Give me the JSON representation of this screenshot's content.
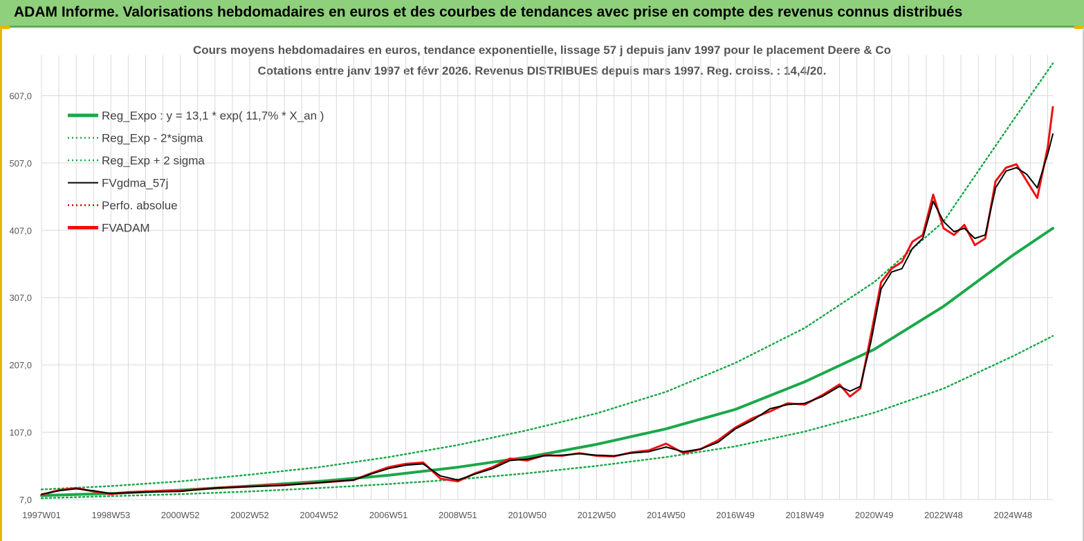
{
  "header": {
    "title": "ADAM Informe. Valorisations hebdomadaires en euros et des courbes de tendances avec prise en compte des revenus connus distribués"
  },
  "colors": {
    "banner": "#8fd07c",
    "trend": "#1aa84a",
    "band": "#1aa84a",
    "smooth": "#000000",
    "perf": "#cc0000",
    "price": "#ee1111",
    "grid": "#d9d9d9"
  },
  "chart_data": {
    "type": "line",
    "title": "Cours moyens hebdomadaires en euros, tendance exponentielle, lissage 57 j depuis janv 1997 pour le placement Deere & Co",
    "subtitle": "Cotations entre janv 1997 et févr 2026. Revenus DISTRIBUES depuis mars 1997. Reg. croiss. : 14,4/20.",
    "xlabel": "",
    "ylabel": "",
    "xlim": [
      1997.0,
      2026.15
    ],
    "ylim": [
      7.0,
      667.0
    ],
    "y_ticks": [
      "7,0",
      "107,0",
      "207,0",
      "307,0",
      "407,0",
      "507,0",
      "607,0"
    ],
    "x_ticks": [
      "1997W01",
      "1998W53",
      "2000W52",
      "2002W52",
      "2004W52",
      "2006W51",
      "2008W51",
      "2010W50",
      "2012W50",
      "2014W50",
      "2016W49",
      "2018W49",
      "2020W49",
      "2022W48",
      "2024W48"
    ],
    "x_tick_years": [
      1997.0,
      1999.0,
      2001.0,
      2003.0,
      2005.0,
      2007.0,
      2009.0,
      2011.0,
      2013.0,
      2015.0,
      2017.0,
      2019.0,
      2021.0,
      2023.0,
      2025.0
    ],
    "grid": true,
    "legend_position": "top-left",
    "series": [
      {
        "name": "Reg_Expo : y = 13,1 * exp( 11,7% *  X_an )",
        "style": "thick-solid",
        "color": "#1aa84a",
        "x": [
          1997.0,
          1999.0,
          2001.0,
          2003.0,
          2005.0,
          2007.0,
          2009.0,
          2011.0,
          2013.0,
          2015.0,
          2017.0,
          2019.0,
          2021.0,
          2023.0,
          2025.0,
          2026.15
        ],
        "y": [
          13,
          16,
          21,
          27,
          34,
          43,
          55,
          70,
          89,
          112,
          141,
          182,
          230,
          294,
          370,
          410
        ]
      },
      {
        "name": "Reg_Exp - 2*sigma",
        "style": "dotted",
        "color": "#1aa84a",
        "x": [
          1997.0,
          1999.0,
          2001.0,
          2003.0,
          2005.0,
          2007.0,
          2009.0,
          2011.0,
          2013.0,
          2015.0,
          2017.0,
          2019.0,
          2021.0,
          2023.0,
          2025.0,
          2026.15
        ],
        "y": [
          9,
          12,
          15,
          19,
          24,
          30,
          37,
          46,
          57,
          70,
          86,
          108,
          136,
          172,
          220,
          250
        ]
      },
      {
        "name": "Reg_Exp + 2 sigma",
        "style": "dotted",
        "color": "#1aa84a",
        "x": [
          1997.0,
          1999.0,
          2001.0,
          2003.0,
          2005.0,
          2007.0,
          2009.0,
          2011.0,
          2013.0,
          2015.0,
          2017.0,
          2019.0,
          2021.0,
          2023.0,
          2025.0,
          2026.15
        ],
        "y": [
          22,
          27,
          34,
          44,
          55,
          70,
          88,
          110,
          135,
          167,
          210,
          262,
          330,
          420,
          570,
          655
        ]
      },
      {
        "name": "FVgdma_57j",
        "style": "thin-solid",
        "color": "#000000",
        "x": [
          1997.0,
          1997.5,
          1998.0,
          1998.5,
          1999.0,
          1999.5,
          2000.0,
          2001.0,
          2002.0,
          2003.0,
          2004.0,
          2005.0,
          2006.0,
          2006.5,
          2007.0,
          2007.5,
          2008.0,
          2008.5,
          2009.0,
          2009.5,
          2010.0,
          2010.5,
          2011.0,
          2011.5,
          2012.0,
          2012.5,
          2013.0,
          2013.5,
          2014.0,
          2014.5,
          2015.0,
          2015.5,
          2016.0,
          2016.5,
          2017.0,
          2017.5,
          2018.0,
          2018.5,
          2019.0,
          2019.5,
          2020.0,
          2020.3,
          2020.6,
          2020.9,
          2021.2,
          2021.5,
          2021.8,
          2022.1,
          2022.4,
          2022.7,
          2023.0,
          2023.3,
          2023.6,
          2023.9,
          2024.2,
          2024.5,
          2024.8,
          2025.1,
          2025.4,
          2025.7,
          2026.0,
          2026.15
        ],
        "y": [
          15,
          20,
          23,
          20,
          16,
          17,
          18,
          19,
          24,
          26,
          28,
          32,
          36,
          45,
          53,
          58,
          60,
          42,
          36,
          45,
          53,
          65,
          67,
          72,
          73,
          75,
          73,
          72,
          76,
          78,
          85,
          78,
          82,
          92,
          112,
          125,
          142,
          148,
          150,
          160,
          175,
          168,
          175,
          240,
          320,
          345,
          350,
          380,
          395,
          450,
          420,
          405,
          410,
          395,
          400,
          470,
          495,
          500,
          490,
          470,
          520,
          550
        ]
      },
      {
        "name": "Perfo. absolue",
        "style": "dotted",
        "color": "#cc0000",
        "x": [
          1997.0,
          1997.5,
          1998.0,
          1998.5,
          1999.0,
          1999.5,
          2000.0,
          2001.0,
          2002.0,
          2003.0,
          2004.0,
          2005.0,
          2006.0,
          2006.5,
          2007.0,
          2007.5,
          2008.0,
          2008.5,
          2009.0,
          2009.5,
          2010.0,
          2010.5,
          2011.0,
          2011.5,
          2012.0,
          2012.5,
          2013.0,
          2013.5,
          2014.0,
          2014.5,
          2015.0,
          2015.5,
          2016.0,
          2016.5,
          2017.0,
          2017.5,
          2018.0,
          2018.5,
          2019.0,
          2019.5,
          2020.0,
          2020.3,
          2020.6,
          2020.9,
          2021.2,
          2021.5,
          2021.8,
          2022.1,
          2022.4,
          2022.7,
          2023.0,
          2023.3,
          2023.6,
          2023.9,
          2024.2,
          2024.5,
          2024.8,
          2025.1,
          2025.4,
          2025.7,
          2026.0,
          2026.15
        ],
        "y": [
          14,
          21,
          24,
          19,
          15,
          18,
          19,
          20,
          24,
          27,
          29,
          32,
          36,
          46,
          55,
          60,
          62,
          38,
          34,
          46,
          55,
          68,
          65,
          73,
          72,
          76,
          72,
          71,
          77,
          80,
          90,
          76,
          82,
          95,
          114,
          128,
          138,
          150,
          148,
          162,
          178,
          160,
          172,
          250,
          330,
          350,
          360,
          390,
          400,
          460,
          410,
          400,
          415,
          385,
          395,
          480,
          500,
          505,
          480,
          455,
          530,
          590
        ]
      },
      {
        "name": "FVADAM",
        "style": "thick-solid",
        "color": "#ee1111",
        "x": [
          1997.0,
          1997.5,
          1998.0,
          1998.5,
          1999.0,
          1999.5,
          2000.0,
          2001.0,
          2002.0,
          2003.0,
          2004.0,
          2005.0,
          2006.0,
          2006.5,
          2007.0,
          2007.5,
          2008.0,
          2008.5,
          2009.0,
          2009.5,
          2010.0,
          2010.5,
          2011.0,
          2011.5,
          2012.0,
          2012.5,
          2013.0,
          2013.5,
          2014.0,
          2014.5,
          2015.0,
          2015.5,
          2016.0,
          2016.5,
          2017.0,
          2017.5,
          2018.0,
          2018.5,
          2019.0,
          2019.5,
          2020.0,
          2020.3,
          2020.6,
          2020.9,
          2021.2,
          2021.5,
          2021.8,
          2022.1,
          2022.4,
          2022.7,
          2023.0,
          2023.3,
          2023.6,
          2023.9,
          2024.2,
          2024.5,
          2024.8,
          2025.1,
          2025.4,
          2025.7,
          2026.0,
          2026.15
        ],
        "y": [
          14,
          21,
          24,
          19,
          15,
          18,
          19,
          20,
          24,
          27,
          29,
          32,
          36,
          46,
          55,
          60,
          62,
          38,
          34,
          46,
          55,
          68,
          65,
          73,
          72,
          76,
          72,
          71,
          77,
          80,
          90,
          76,
          82,
          95,
          114,
          128,
          138,
          150,
          148,
          162,
          178,
          160,
          172,
          250,
          330,
          350,
          360,
          390,
          400,
          460,
          410,
          400,
          415,
          385,
          395,
          480,
          500,
          505,
          480,
          455,
          530,
          590
        ]
      }
    ]
  }
}
